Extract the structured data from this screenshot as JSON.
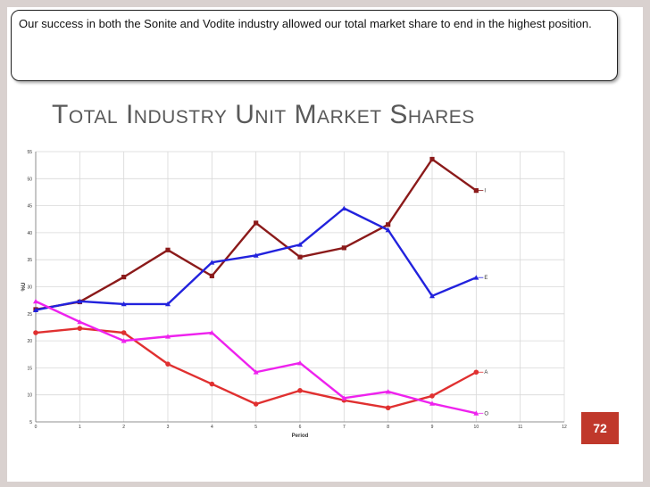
{
  "caption": "Our success in both the Sonite and Vodite industry allowed our total market share to end in the highest position.",
  "slide_title": "Total Industry Unit Market Shares",
  "page_number": "72",
  "colors": {
    "accent": "#c0382b",
    "frame": "#d9d1cf"
  },
  "chart_data": {
    "type": "line",
    "xlabel": "Period",
    "ylabel": "%U",
    "xlim": [
      0,
      12
    ],
    "ylim": [
      5,
      55
    ],
    "x_ticks": [
      "0",
      "1",
      "2",
      "3",
      "4",
      "5",
      "6",
      "7",
      "8",
      "9",
      "10",
      "11",
      "12"
    ],
    "y_ticks": [
      "5",
      "10",
      "15",
      "20",
      "25",
      "30",
      "35",
      "40",
      "45",
      "50",
      "55"
    ],
    "grid": true,
    "x": [
      0,
      1,
      2,
      3,
      4,
      5,
      6,
      7,
      8,
      9,
      10
    ],
    "series": [
      {
        "name": "I",
        "color": "#8b1a1a",
        "marker": "square",
        "values": [
          25.8,
          27.2,
          31.8,
          36.8,
          32.0,
          41.8,
          35.5,
          37.2,
          41.5,
          53.6,
          47.8
        ]
      },
      {
        "name": "E",
        "color": "#2222dd",
        "marker": "triangle",
        "values": [
          25.7,
          27.3,
          26.8,
          26.8,
          34.5,
          35.8,
          37.8,
          44.5,
          40.5,
          28.3,
          31.7
        ]
      },
      {
        "name": "A",
        "color": "#e03030",
        "marker": "circle",
        "values": [
          21.5,
          22.3,
          21.5,
          15.7,
          12.0,
          8.3,
          10.8,
          9.0,
          7.6,
          9.8,
          14.2
        ]
      },
      {
        "name": "O",
        "color": "#ee22ee",
        "marker": "triangle",
        "values": [
          27.3,
          23.5,
          20.0,
          20.8,
          21.5,
          14.2,
          15.9,
          9.4,
          10.6,
          8.4,
          6.6
        ]
      }
    ]
  }
}
